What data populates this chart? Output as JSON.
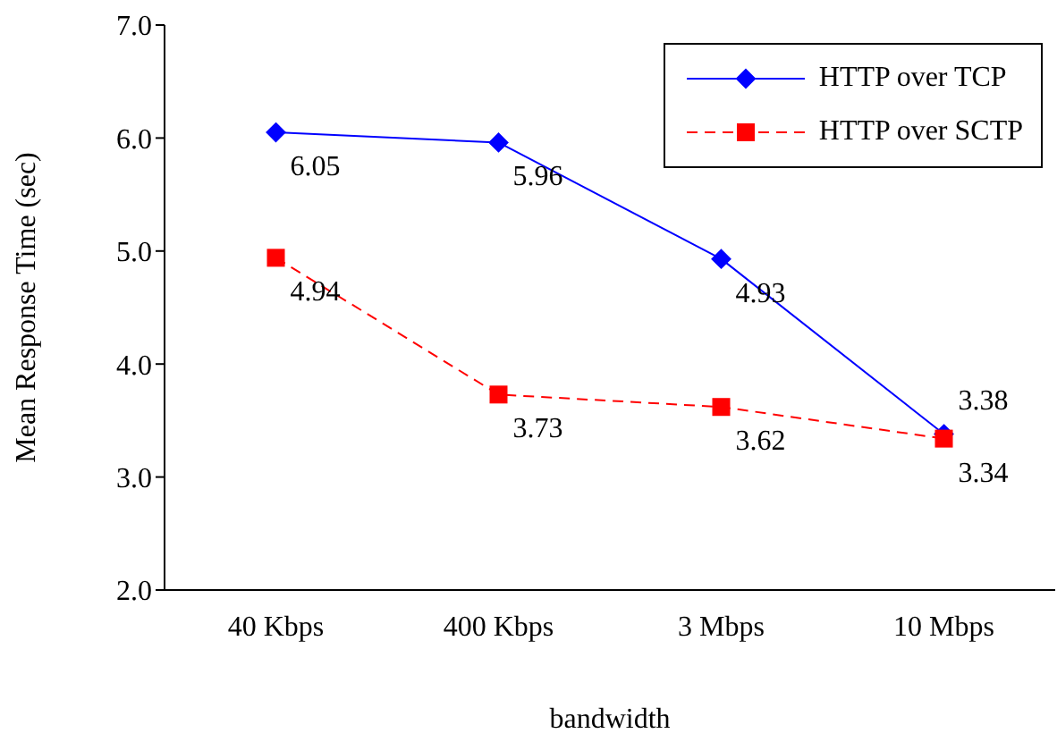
{
  "chart_data": {
    "type": "line",
    "xlabel": "bandwidth",
    "ylabel": "Mean Response Time (sec)",
    "categories": [
      "40 Kbps",
      "400 Kbps",
      "3 Mbps",
      "10 Mbps"
    ],
    "series": [
      {
        "name": "HTTP over TCP",
        "color": "#0000ff",
        "values": [
          6.05,
          5.96,
          4.93,
          3.38
        ],
        "marker": "diamond",
        "line_style": "solid"
      },
      {
        "name": "HTTP over SCTP",
        "color": "#ff0000",
        "values": [
          4.94,
          3.73,
          3.62,
          3.34
        ],
        "marker": "square",
        "line_style": "dashed"
      }
    ],
    "ylim": [
      2,
      7
    ],
    "yticks": [
      {
        "value": 2,
        "label": "2.0"
      },
      {
        "value": 3,
        "label": "3.0"
      },
      {
        "value": 4,
        "label": "4.0"
      },
      {
        "value": 5,
        "label": "5.0"
      },
      {
        "value": 6,
        "label": "6.0"
      },
      {
        "value": 7,
        "label": "7.0"
      }
    ],
    "data_labels": true,
    "legend": "top right",
    "grid": false
  }
}
